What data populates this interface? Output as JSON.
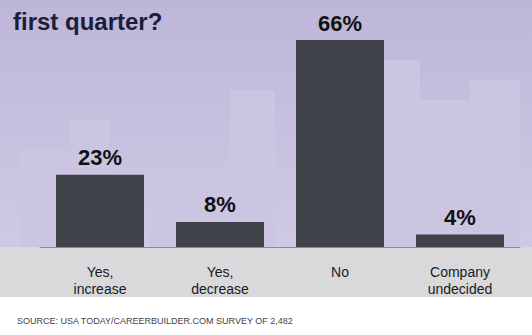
{
  "chart_data": {
    "type": "bar",
    "title": "first quarter?",
    "categories": [
      "Yes, increase",
      "Yes, decrease",
      "No",
      "Company undecided"
    ],
    "values": [
      23,
      8,
      66,
      4
    ],
    "value_labels": [
      "23%",
      "8%",
      "66%",
      "4%"
    ],
    "color": "#3f4248",
    "data_labels": true,
    "tick_labels": false,
    "grid": false,
    "source": "SOURCE: USA TODAY/CAREERBUILDER.COM SURVEY OF 2,482"
  }
}
